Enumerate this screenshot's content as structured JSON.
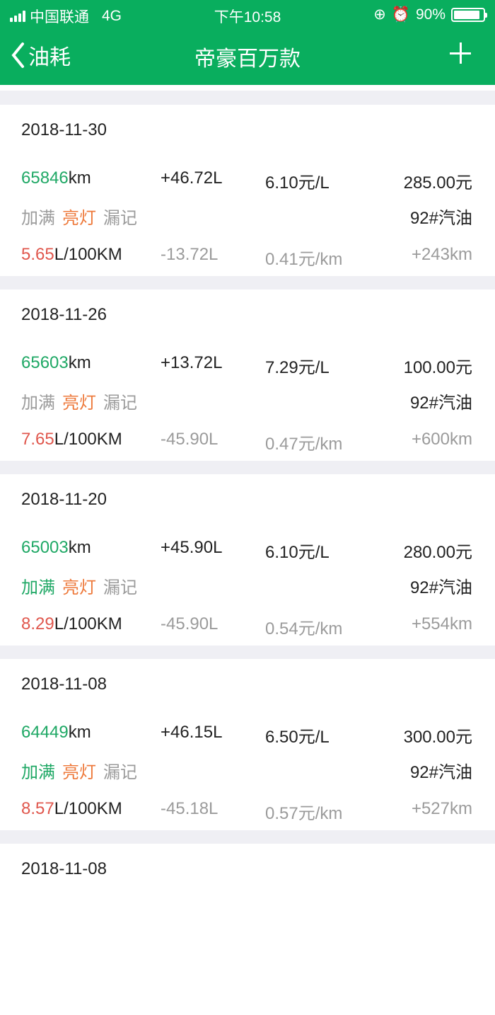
{
  "status": {
    "carrier": "中国联通",
    "network": "4G",
    "time": "下午10:58",
    "battery": "90%",
    "battery_level": 0.9
  },
  "nav": {
    "back_label": "油耗",
    "title": "帝豪百万款",
    "add_icon": "plus-icon"
  },
  "colors": {
    "header": "#09ae5e",
    "odometer": "#1fa865",
    "consumption": "#e0574d",
    "light_on": "#ee7a3c",
    "inactive": "#9b9b9b"
  },
  "tags": {
    "full": "加满",
    "light": "亮灯",
    "missed": "漏记"
  },
  "records": [
    {
      "date": "2018-11-30",
      "odometer": "65846",
      "odo_unit": "km",
      "volume": "+46.72L",
      "price": "6.10元/L",
      "amount": "285.00元",
      "full_active": false,
      "fuel": "92#汽油",
      "consumption": "5.65",
      "cons_unit": "L/100KM",
      "diff": "-13.72L",
      "cost_per_km": "0.41元/km",
      "distance": "+243km"
    },
    {
      "date": "2018-11-26",
      "odometer": "65603",
      "odo_unit": "km",
      "volume": "+13.72L",
      "price": "7.29元/L",
      "amount": "100.00元",
      "full_active": false,
      "fuel": "92#汽油",
      "consumption": "7.65",
      "cons_unit": "L/100KM",
      "diff": "-45.90L",
      "cost_per_km": "0.47元/km",
      "distance": "+600km"
    },
    {
      "date": "2018-11-20",
      "odometer": "65003",
      "odo_unit": "km",
      "volume": "+45.90L",
      "price": "6.10元/L",
      "amount": "280.00元",
      "full_active": true,
      "fuel": "92#汽油",
      "consumption": "8.29",
      "cons_unit": "L/100KM",
      "diff": "-45.90L",
      "cost_per_km": "0.54元/km",
      "distance": "+554km"
    },
    {
      "date": "2018-11-08",
      "odometer": "64449",
      "odo_unit": "km",
      "volume": "+46.15L",
      "price": "6.50元/L",
      "amount": "300.00元",
      "full_active": true,
      "fuel": "92#汽油",
      "consumption": "8.57",
      "cons_unit": "L/100KM",
      "diff": "-45.18L",
      "cost_per_km": "0.57元/km",
      "distance": "+527km"
    },
    {
      "date": "2018-11-08"
    }
  ]
}
